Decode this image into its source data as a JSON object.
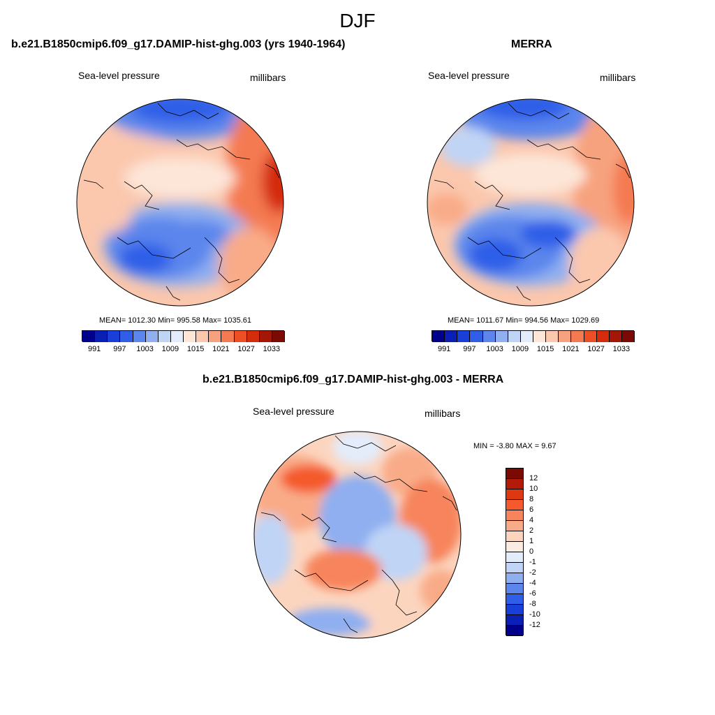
{
  "main_title": "DJF",
  "panels": [
    {
      "title": "b.e21.B1850cmip6.f09_g17.DAMIP-hist-ghg.003 (yrs 1940-1964)",
      "left_label": "Sea-level pressure",
      "right_label": "millibars",
      "stats": "MEAN= 1012.30  Min= 995.58  Max= 1035.61",
      "colorbar_ticks": [
        "991",
        "997",
        "1003",
        "1009",
        "1015",
        "1021",
        "1027",
        "1033"
      ]
    },
    {
      "title": "MERRA",
      "left_label": "Sea-level pressure",
      "right_label": "millibars",
      "stats": "MEAN= 1011.67  Min= 994.56  Max= 1029.69",
      "colorbar_ticks": [
        "991",
        "997",
        "1003",
        "1009",
        "1015",
        "1021",
        "1027",
        "1033"
      ]
    },
    {
      "title": "b.e21.B1850cmip6.f09_g17.DAMIP-hist-ghg.003 - MERRA",
      "left_label": "Sea-level pressure",
      "right_label": "millibars",
      "stats": "MIN =  -3.80 MAX =   9.67",
      "colorbar_ticks": [
        "12",
        "10",
        "8",
        "6",
        "4",
        "2",
        "1",
        "0",
        "-1",
        "-2",
        "-4",
        "-6",
        "-8",
        "-10",
        "-12"
      ]
    }
  ],
  "colors": {
    "abs_scale": [
      "#00008b",
      "#0a1fb4",
      "#1a3fd8",
      "#2f5fe8",
      "#5c86ec",
      "#8faff0",
      "#c0d4f6",
      "#e3ecfb",
      "#fde6d8",
      "#fbc7ad",
      "#f7a27e",
      "#f47a51",
      "#ec4f23",
      "#d42c0c",
      "#a51606",
      "#7a0a03"
    ],
    "diff_scale": [
      "#7a0a03",
      "#b31a07",
      "#dd3811",
      "#f45a2c",
      "#f7845c",
      "#f9ab88",
      "#fcd5bf",
      "#fbece1",
      "#e3ecfb",
      "#c0d4f6",
      "#8faff0",
      "#5c86ec",
      "#2f5fe8",
      "#1a3fd8",
      "#0a1fb4",
      "#00008b"
    ]
  }
}
